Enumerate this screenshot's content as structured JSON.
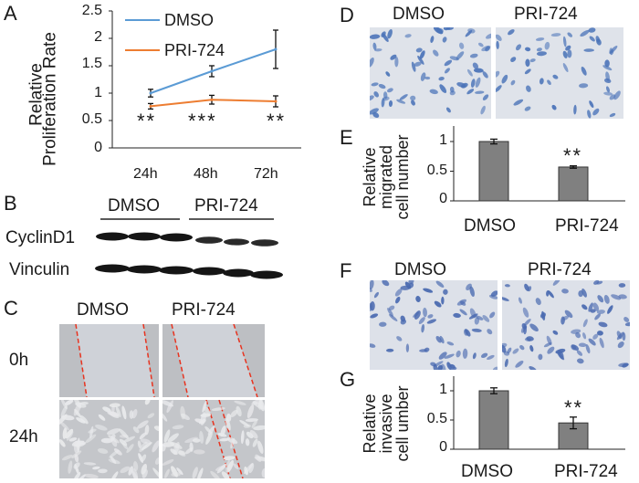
{
  "panels": {
    "a": "A",
    "b": "B",
    "c": "C",
    "d": "D",
    "e": "E",
    "f": "F",
    "g": "G"
  },
  "colors": {
    "dmso": "#5b9bd5",
    "pri": "#ed7d31",
    "bar": "#808080",
    "wound": "#e8331f"
  },
  "chart_data": [
    {
      "id": "A",
      "type": "line",
      "ylabel_1": "Relative",
      "ylabel_2": "Proliferation Rate",
      "categories": [
        "24h",
        "48h",
        "72h"
      ],
      "ylim": [
        0,
        2.5
      ],
      "yticks": [
        "0",
        "0.5",
        "1",
        "1.5",
        "2",
        "2.5"
      ],
      "series": [
        {
          "name": "DMSO",
          "values": [
            1.0,
            1.4,
            1.8
          ],
          "errors": [
            0.07,
            0.1,
            0.35
          ]
        },
        {
          "name": "PRI-724",
          "values": [
            0.76,
            0.88,
            0.85
          ],
          "errors": [
            0.05,
            0.08,
            0.1
          ]
        }
      ],
      "annotations": [
        "**",
        "***",
        "**"
      ]
    },
    {
      "id": "E",
      "type": "bar",
      "ylabel_1": "Relative",
      "ylabel_2": "migrated",
      "ylabel_3": "cell number",
      "categories": [
        "DMSO",
        "PRI-724"
      ],
      "values": [
        1.0,
        0.57
      ],
      "errors": [
        0.04,
        0.02
      ],
      "ylim": [
        0,
        1.2
      ],
      "yticks": [
        "0",
        "0.5",
        "1"
      ],
      "annotation": "**"
    },
    {
      "id": "G",
      "type": "bar",
      "ylabel_1": "Relative",
      "ylabel_2": "invasive",
      "ylabel_3": "cell umber",
      "categories": [
        "DMSO",
        "PRI-724"
      ],
      "values": [
        1.0,
        0.45
      ],
      "errors": [
        0.05,
        0.1
      ],
      "ylim": [
        0,
        1.2
      ],
      "yticks": [
        "0",
        "0.5",
        "1"
      ],
      "annotation": "**"
    }
  ],
  "western": {
    "groups": [
      "DMSO",
      "PRI-724"
    ],
    "rows": [
      "CyclinD1",
      "Vinculin"
    ]
  },
  "wound": {
    "columns": [
      "DMSO",
      "PRI-724"
    ],
    "rows": [
      "0h",
      "24h"
    ]
  },
  "migration": {
    "columns": [
      "DMSO",
      "PRI-724"
    ]
  },
  "invasion": {
    "columns": [
      "DMSO",
      "PRI-724"
    ]
  }
}
